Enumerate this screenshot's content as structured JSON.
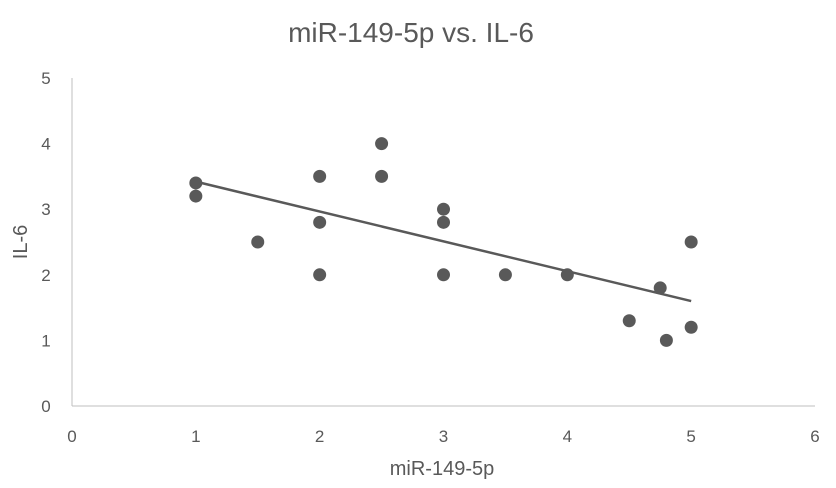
{
  "chart_data": {
    "type": "scatter",
    "title": "miR-149-5p vs. IL-6",
    "xlabel": "miR-149-5p",
    "ylabel": "IL-6",
    "xlim": [
      0,
      6
    ],
    "ylim": [
      0,
      5
    ],
    "xticks": [
      0,
      1,
      2,
      3,
      4,
      5,
      6
    ],
    "yticks": [
      0,
      1,
      2,
      3,
      4,
      5
    ],
    "grid": false,
    "legend": "none",
    "marker_color": "#595959",
    "points": [
      {
        "x": 1,
        "y": 3.4
      },
      {
        "x": 1,
        "y": 3.2
      },
      {
        "x": 1.5,
        "y": 2.5
      },
      {
        "x": 2,
        "y": 3.5
      },
      {
        "x": 2,
        "y": 2.8
      },
      {
        "x": 2,
        "y": 2.0
      },
      {
        "x": 2.5,
        "y": 4.0
      },
      {
        "x": 2.5,
        "y": 3.5
      },
      {
        "x": 3,
        "y": 3.0
      },
      {
        "x": 3,
        "y": 2.8
      },
      {
        "x": 3,
        "y": 2.0
      },
      {
        "x": 3.5,
        "y": 2.0
      },
      {
        "x": 4,
        "y": 2.0
      },
      {
        "x": 4.5,
        "y": 1.3
      },
      {
        "x": 4.75,
        "y": 1.8
      },
      {
        "x": 4.8,
        "y": 1.0
      },
      {
        "x": 5,
        "y": 2.5
      },
      {
        "x": 5,
        "y": 1.2
      }
    ],
    "trendline": {
      "type": "linear",
      "from": {
        "x": 1,
        "y": 3.42
      },
      "to": {
        "x": 5,
        "y": 1.6
      }
    }
  }
}
